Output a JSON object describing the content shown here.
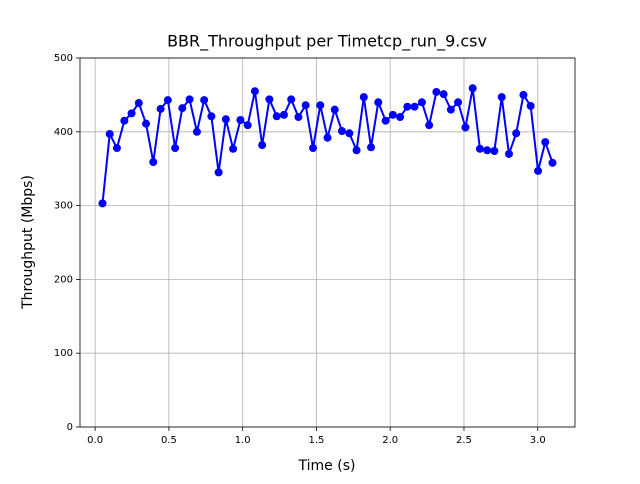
{
  "chart_data": {
    "type": "line",
    "title": "BBR_Throughput per Timetcp_run_9.csv",
    "x_label": "Time (s)",
    "y_label": "Throughput (Mbps)",
    "x": [
      0.05,
      0.099,
      0.148,
      0.198,
      0.247,
      0.296,
      0.345,
      0.394,
      0.444,
      0.493,
      0.542,
      0.591,
      0.64,
      0.69,
      0.739,
      0.788,
      0.837,
      0.886,
      0.935,
      0.985,
      1.034,
      1.083,
      1.132,
      1.181,
      1.231,
      1.28,
      1.329,
      1.378,
      1.427,
      1.477,
      1.526,
      1.575,
      1.624,
      1.673,
      1.723,
      1.772,
      1.821,
      1.87,
      1.919,
      1.969,
      2.018,
      2.067,
      2.116,
      2.165,
      2.215,
      2.264,
      2.313,
      2.362,
      2.411,
      2.46,
      2.51,
      2.559,
      2.608,
      2.657,
      2.706,
      2.756,
      2.805,
      2.854,
      2.903,
      2.952,
      3.002,
      3.051,
      3.1
    ],
    "values": [
      303,
      397,
      378,
      415,
      425,
      439,
      411,
      359,
      431,
      443,
      378,
      432,
      444,
      400,
      443,
      421,
      345,
      417,
      377,
      416,
      409,
      455,
      382,
      444,
      421,
      423,
      444,
      420,
      436,
      378,
      436,
      392,
      430,
      401,
      398,
      375,
      447,
      379,
      440,
      415,
      423,
      420,
      434,
      434,
      440,
      409,
      454,
      451,
      430,
      440,
      406,
      459,
      377,
      375,
      374,
      447,
      370,
      398,
      450,
      435,
      347,
      386,
      358
    ],
    "color": "#0000ff",
    "xlim": [
      -0.1025,
      3.2525
    ],
    "xticks": [
      {
        "value": 0,
        "label": "0.0"
      },
      0.5,
      {
        "value": 1,
        "label": "1.0"
      },
      1.5,
      {
        "value": 2,
        "label": "2.0"
      },
      2.5,
      {
        "value": 3,
        "label": "3.0"
      }
    ],
    "ylim": [
      0,
      500
    ],
    "yticks": [
      0,
      100,
      200,
      300,
      400,
      500
    ],
    "grid": true
  }
}
